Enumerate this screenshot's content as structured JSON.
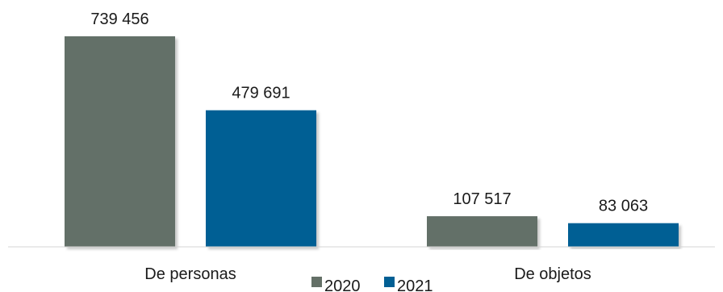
{
  "chart_data": {
    "type": "bar",
    "title": "",
    "xlabel": "",
    "ylabel": "",
    "categories": [
      "De personas",
      "De objetos"
    ],
    "series": [
      {
        "name": "2020",
        "color": "#647067",
        "values": [
          739456,
          107517
        ],
        "labels": [
          "739 456",
          "107 517"
        ]
      },
      {
        "name": "2021",
        "color": "#015f94",
        "values": [
          479691,
          83063
        ],
        "labels": [
          "479 691",
          "83 063"
        ]
      }
    ],
    "ylim": [
      0,
      739456
    ],
    "grid": false,
    "legend": "bottom"
  }
}
